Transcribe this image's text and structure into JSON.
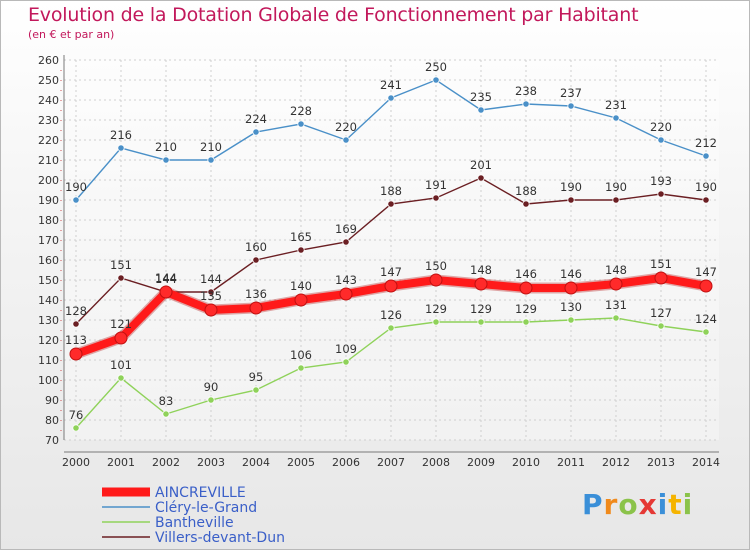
{
  "title": "Evolution de la Dotation Globale de Fonctionnement par Habitant",
  "subtitle": "(en € et par an)",
  "logo": {
    "p": "P",
    "r": "r",
    "o": "o",
    "x": "x",
    "i1": "i",
    "t": "t",
    "i2": "i"
  },
  "chart_data": {
    "type": "line",
    "title": "Evolution de la Dotation Globale de Fonctionnement par Habitant",
    "subtitle": "(en € et par an)",
    "xlabel": "",
    "ylabel": "",
    "ylim": [
      70,
      260
    ],
    "yticks": [
      70,
      80,
      90,
      100,
      110,
      120,
      130,
      140,
      150,
      160,
      170,
      180,
      190,
      200,
      210,
      220,
      230,
      240,
      250,
      260
    ],
    "grid": true,
    "legend": "bottom-left",
    "x": [
      "2000",
      "2001",
      "2002",
      "2003",
      "2004",
      "2005",
      "2006",
      "2007",
      "2008",
      "2009",
      "2010",
      "2011",
      "2012",
      "2013",
      "2014"
    ],
    "series": [
      {
        "name": "Clery",
        "label": "Cléry-le-Grand",
        "color": "#4a90c8",
        "values": [
          190,
          216,
          210,
          210,
          224,
          228,
          220,
          241,
          250,
          235,
          238,
          237,
          231,
          220,
          212
        ]
      },
      {
        "name": "Villers",
        "label": "Villers-devant-Dun",
        "color": "#6b1f23",
        "values": [
          128,
          151,
          144,
          144,
          160,
          165,
          169,
          188,
          191,
          201,
          188,
          190,
          190,
          193,
          190
        ]
      },
      {
        "name": "Bantheville",
        "label": "Bantheville",
        "color": "#8fd25a",
        "values": [
          76,
          101,
          83,
          90,
          95,
          106,
          109,
          126,
          129,
          129,
          129,
          130,
          131,
          127,
          124
        ]
      },
      {
        "name": "Aincreville",
        "label": "AINCREVILLE",
        "color": "#ff1a1a",
        "values": [
          113,
          121,
          144,
          135,
          136,
          140,
          143,
          147,
          150,
          148,
          146,
          146,
          148,
          151,
          147
        ]
      }
    ],
    "legend_order": [
      "Aincreville",
      "Clery",
      "Bantheville",
      "Villers"
    ]
  }
}
